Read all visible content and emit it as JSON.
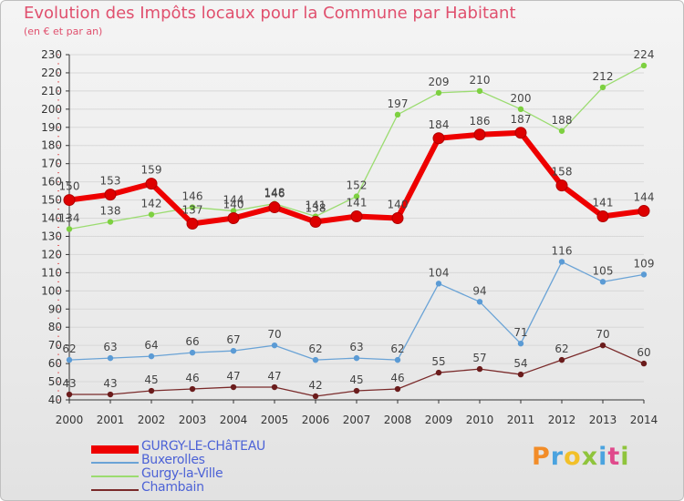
{
  "chart_data": {
    "type": "line",
    "title": "Evolution des Impôts locaux pour la Commune par Habitant",
    "subtitle": "(en € et par an)",
    "xlabel": "",
    "ylabel": "",
    "x": [
      "2000",
      "2001",
      "2002",
      "2003",
      "2004",
      "2005",
      "2006",
      "2007",
      "2008",
      "2009",
      "2010",
      "2011",
      "2012",
      "2013",
      "2014"
    ],
    "ylim": [
      40,
      230
    ],
    "yticks": [
      40,
      50,
      60,
      70,
      80,
      90,
      100,
      110,
      120,
      130,
      140,
      150,
      160,
      170,
      180,
      190,
      200,
      210,
      220,
      230
    ],
    "grid": true,
    "legend_position": "bottom-left",
    "series": [
      {
        "name": "GURGY-LE-CHâTEAU",
        "color": "#ee0000",
        "marker": "#dd0000",
        "width": 6,
        "point_radius": 6,
        "values": [
          150,
          153,
          159,
          137,
          140,
          146,
          138,
          141,
          140,
          184,
          186,
          187,
          158,
          141,
          144
        ]
      },
      {
        "name": "Buxerolles",
        "color": "#6aa3d6",
        "marker": "#5b9bd5",
        "width": 1.3,
        "point_radius": 3.2,
        "values": [
          62,
          63,
          64,
          66,
          67,
          70,
          62,
          63,
          62,
          104,
          94,
          71,
          116,
          105,
          109
        ]
      },
      {
        "name": "Gurgy-la-Ville",
        "color": "#9bdc70",
        "marker": "#7dd040",
        "width": 1.3,
        "point_radius": 3.2,
        "values": [
          134,
          138,
          142,
          146,
          144,
          148,
          141,
          152,
          197,
          209,
          210,
          200,
          188,
          212,
          224
        ]
      },
      {
        "name": "Chambain",
        "color": "#7a2a2a",
        "marker": "#6b1c1c",
        "width": 1.3,
        "point_radius": 3.2,
        "values": [
          43,
          43,
          45,
          46,
          47,
          47,
          42,
          45,
          46,
          55,
          57,
          54,
          62,
          70,
          60
        ]
      }
    ],
    "data_labels": [
      {
        "series": 0,
        "labels": [
          "150",
          "153",
          "159",
          "137",
          "140",
          "146",
          "138",
          "141",
          "140",
          "184",
          "186",
          "187",
          "158",
          "141",
          "144"
        ]
      },
      {
        "series": 1,
        "labels": [
          "62",
          "63",
          "64",
          "66",
          "67",
          "70",
          "62",
          "63",
          "62",
          "104",
          "94",
          "71",
          "116",
          "105",
          "109"
        ]
      },
      {
        "series": 2,
        "labels": [
          "134",
          "138",
          "142",
          "146",
          "144",
          "148",
          "141",
          "152",
          "197",
          "209",
          "210",
          "200",
          "188",
          "212",
          "224"
        ]
      },
      {
        "series": 3,
        "labels": [
          "43",
          "43",
          "45",
          "46",
          "47",
          "47",
          "42",
          "45",
          "46",
          "55",
          "57",
          "54",
          "62",
          "70",
          "60"
        ]
      }
    ]
  },
  "colors": {
    "title": "#e0506e",
    "axis": "#333333",
    "grid": "#d8d8d8",
    "label_text": "#444444",
    "legend_text": "#4c62d6"
  },
  "logo": {
    "text": "Proxiti",
    "letter_colors": [
      "#f28c28",
      "#4aa3df",
      "#f2c029",
      "#8fc43c",
      "#4aa3df",
      "#e04a8c",
      "#8fc43c"
    ]
  }
}
